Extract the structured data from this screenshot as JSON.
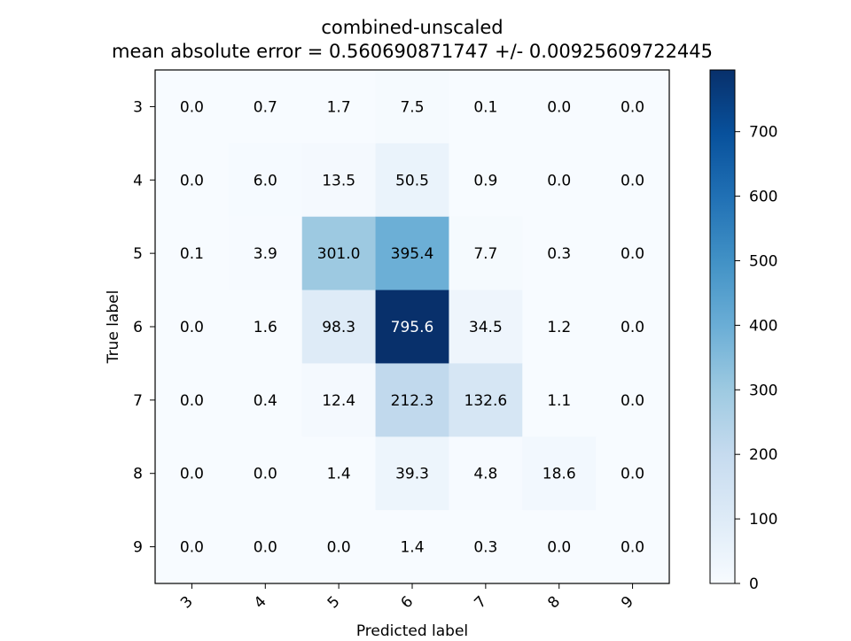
{
  "chart_data": {
    "type": "heatmap",
    "title": "combined-unscaled",
    "subtitle": "mean absolute error = 0.560690871747 +/- 0.00925609722445",
    "xlabel": "Predicted label",
    "ylabel": "True label",
    "x_categories": [
      "3",
      "4",
      "5",
      "6",
      "7",
      "8",
      "9"
    ],
    "y_categories": [
      "3",
      "4",
      "5",
      "6",
      "7",
      "8",
      "9"
    ],
    "values": [
      [
        0.0,
        0.7,
        1.7,
        7.5,
        0.1,
        0.0,
        0.0
      ],
      [
        0.0,
        6.0,
        13.5,
        50.5,
        0.9,
        0.0,
        0.0
      ],
      [
        0.1,
        3.9,
        301.0,
        395.4,
        7.7,
        0.3,
        0.0
      ],
      [
        0.0,
        1.6,
        98.3,
        795.6,
        34.5,
        1.2,
        0.0
      ],
      [
        0.0,
        0.4,
        12.4,
        212.3,
        132.6,
        1.1,
        0.0
      ],
      [
        0.0,
        0.0,
        1.4,
        39.3,
        4.8,
        18.6,
        0.0
      ],
      [
        0.0,
        0.0,
        0.0,
        1.4,
        0.3,
        0.0,
        0.0
      ]
    ],
    "colormap": "Blues",
    "color_low": "#f7fbff",
    "color_high": "#08306b",
    "vmin": 0,
    "vmax": 795.6,
    "colorbar_ticks": [
      "0",
      "100",
      "200",
      "300",
      "400",
      "500",
      "600",
      "700"
    ],
    "text_color_dark": "#000000",
    "text_color_light": "#ffffff",
    "grid": false,
    "legend": "colorbar-right"
  }
}
